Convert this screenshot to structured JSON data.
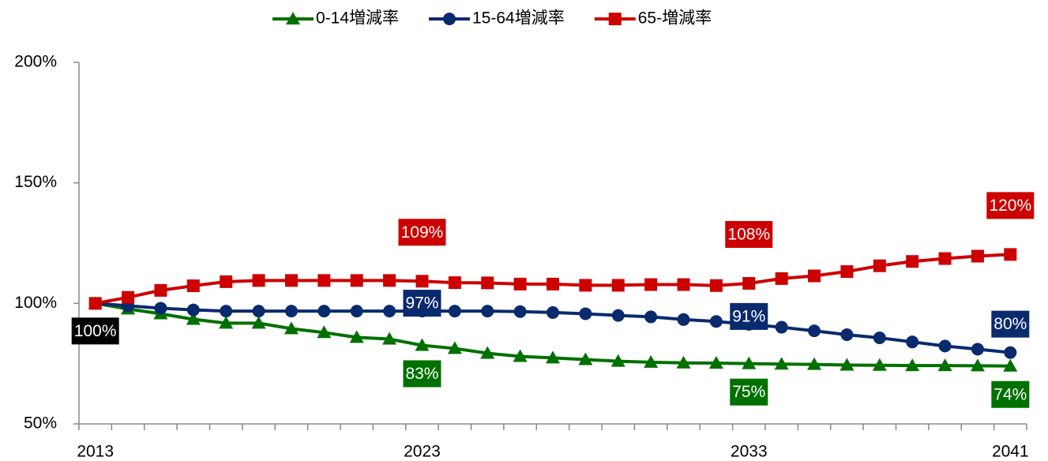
{
  "chart_data": {
    "type": "line",
    "categories": [
      "2013",
      null,
      null,
      null,
      null,
      null,
      null,
      null,
      null,
      null,
      "2023",
      null,
      null,
      null,
      null,
      null,
      null,
      null,
      null,
      null,
      "2033",
      null,
      null,
      null,
      null,
      null,
      null,
      null,
      "2041"
    ],
    "series": [
      {
        "name": "0-14増減率",
        "color": "#007000",
        "marker": "triangle",
        "values": [
          100,
          97.7,
          95.7,
          93.4,
          91.8,
          91.8,
          89.5,
          87.9,
          85.9,
          85.2,
          82.6,
          81.3,
          79.3,
          78.0,
          77.4,
          76.7,
          76.0,
          75.6,
          75.3,
          75.2,
          75.0,
          74.8,
          74.7,
          74.4,
          74.3,
          74.2,
          74.2,
          74.1,
          74.0
        ],
        "value_labels": [
          null,
          null,
          null,
          null,
          null,
          null,
          null,
          null,
          null,
          null,
          "83%",
          null,
          null,
          null,
          null,
          null,
          null,
          null,
          null,
          null,
          "75%",
          null,
          null,
          null,
          null,
          null,
          null,
          null,
          "74%"
        ]
      },
      {
        "name": "15-64増減率",
        "color": "#0a2a6e",
        "marker": "circle",
        "values": [
          100,
          99.0,
          98.0,
          97.3,
          96.8,
          96.8,
          96.8,
          96.8,
          96.8,
          96.8,
          96.8,
          96.8,
          96.8,
          96.6,
          96.2,
          95.7,
          95.0,
          94.4,
          93.3,
          92.5,
          91.3,
          90.1,
          88.6,
          87.0,
          85.7,
          84.0,
          82.3,
          81.0,
          79.6
        ],
        "value_labels": [
          "100%",
          null,
          null,
          null,
          null,
          null,
          null,
          null,
          null,
          null,
          "97%",
          null,
          null,
          null,
          null,
          null,
          null,
          null,
          null,
          null,
          "91%",
          null,
          null,
          null,
          null,
          null,
          null,
          null,
          "80%"
        ]
      },
      {
        "name": "65-増減率",
        "color": "#cc0000",
        "marker": "square",
        "values": [
          100,
          102.5,
          105.4,
          107.3,
          109.0,
          109.5,
          109.5,
          109.5,
          109.5,
          109.5,
          109.2,
          108.6,
          108.5,
          108.0,
          108.0,
          107.5,
          107.5,
          107.8,
          107.8,
          107.4,
          108.3,
          110.3,
          111.4,
          113.2,
          115.6,
          117.4,
          118.6,
          119.6,
          120.3
        ],
        "value_labels": [
          null,
          null,
          null,
          null,
          null,
          null,
          null,
          null,
          null,
          null,
          "109%",
          null,
          null,
          null,
          null,
          null,
          null,
          null,
          null,
          null,
          "108%",
          null,
          null,
          null,
          null,
          null,
          null,
          null,
          "120%"
        ]
      }
    ],
    "first_label_color": "#000000",
    "ylim": [
      50,
      200
    ],
    "yticks": [
      {
        "value": 50,
        "label": "50%"
      },
      {
        "value": 100,
        "label": "100%"
      },
      {
        "value": 150,
        "label": "150%"
      },
      {
        "value": 200,
        "label": "200%"
      }
    ],
    "legend": "top"
  }
}
